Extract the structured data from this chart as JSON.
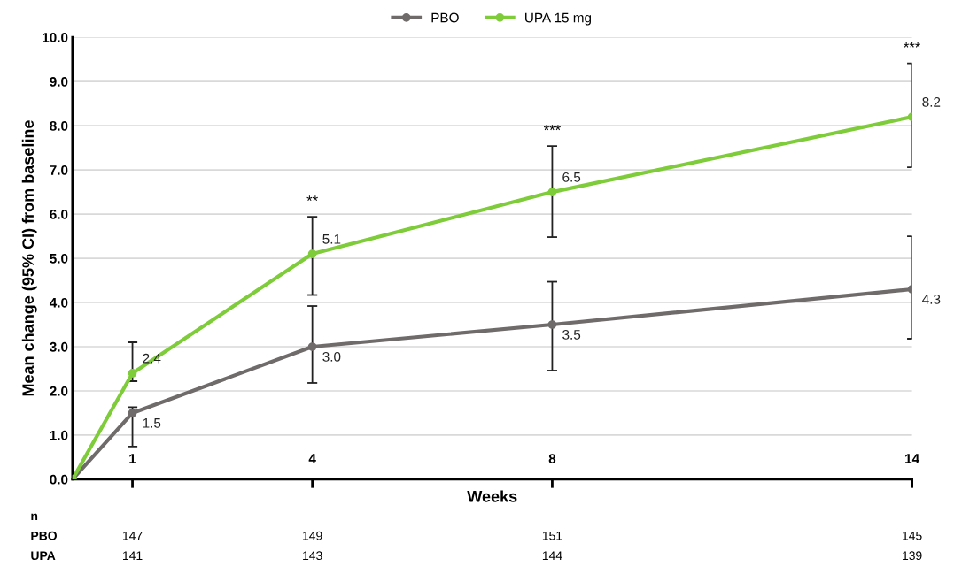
{
  "chart_data": {
    "type": "line",
    "xlabel": "Weeks",
    "ylabel": "Mean change (95% CI) from baseline",
    "x": [
      0,
      1,
      4,
      8,
      14
    ],
    "xlim": [
      0,
      14
    ],
    "xticks": [
      1,
      4,
      8,
      14
    ],
    "ylim": [
      0,
      10
    ],
    "yticks": [
      {
        "value": 0,
        "label": "0.0"
      },
      {
        "value": 1,
        "label": "1.0"
      },
      {
        "value": 2,
        "label": "2.0"
      },
      {
        "value": 3,
        "label": "3.0"
      },
      {
        "value": 4,
        "label": "4.0"
      },
      {
        "value": 5,
        "label": "5.0"
      },
      {
        "value": 6,
        "label": "6.0"
      },
      {
        "value": 7,
        "label": "7.0"
      },
      {
        "value": 8,
        "label": "8.0"
      },
      {
        "value": 9,
        "label": "9.0"
      },
      {
        "value": 10,
        "label": "10.0"
      }
    ],
    "series": [
      {
        "name": "PBO",
        "color": "#6f6b6b",
        "values": [
          0,
          1.5,
          3.0,
          3.5,
          4.3
        ],
        "value_labels": [
          null,
          "1.5",
          "3.0",
          "3.5",
          "4.3"
        ],
        "errors": [
          null,
          [
            0.74,
            1.63
          ],
          [
            2.18,
            3.92
          ],
          [
            2.46,
            4.47
          ],
          [
            3.18,
            5.5
          ]
        ]
      },
      {
        "name": "UPA 15 mg",
        "color": "#7fcc3a",
        "values": [
          0,
          2.4,
          5.1,
          6.5,
          8.2
        ],
        "value_labels": [
          null,
          "2.4",
          "5.1",
          "6.5",
          "8.2"
        ],
        "errors": [
          null,
          [
            2.22,
            3.1
          ],
          [
            4.17,
            5.94
          ],
          [
            5.48,
            7.54
          ],
          [
            7.06,
            9.41
          ]
        ]
      }
    ],
    "annotations": [
      "**",
      "***",
      "***",
      "n",
      "PBO",
      "147",
      "149",
      "151",
      "145",
      "UPA",
      "141",
      "143",
      "144",
      "139"
    ],
    "marker": "circle",
    "line_style": "solid",
    "grid": "y",
    "legend": "top"
  }
}
